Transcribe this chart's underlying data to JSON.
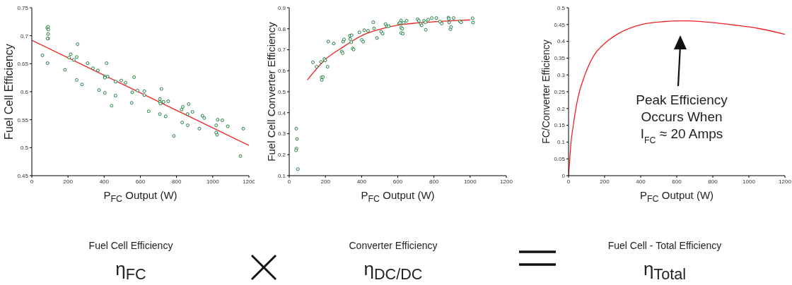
{
  "chart_data": [
    {
      "type": "scatter",
      "xlabel": "P$_{FC}$ Output (W)",
      "ylabel": "Fuel Cell Efficiency",
      "xlim": [
        0,
        1200
      ],
      "xticks": [
        0,
        200,
        400,
        600,
        800,
        1000,
        1200
      ],
      "ylim": [
        0.45,
        0.75
      ],
      "yticks": [
        0.45,
        0.5,
        0.55,
        0.6,
        0.65,
        0.7,
        0.75
      ],
      "annotations": [
        "Fuel Cell Efficiency",
        "η$_{FC}$"
      ],
      "series": [
        {
          "marker": "circle",
          "color": "#208040",
          "x": [
            59,
            85,
            90,
            91,
            90,
            90,
            87,
            87,
            183,
            206,
            215,
            232,
            248,
            253,
            248,
            277,
            308,
            338,
            365,
            372,
            404,
            404,
            404,
            413,
            419,
            441,
            463,
            463,
            494,
            518,
            555,
            552,
            565,
            584,
            622,
            622,
            646,
            708,
            708,
            711,
            708,
            717,
            728,
            740,
            754,
            785,
            828,
            835,
            831,
            861,
            862,
            867,
            888,
            926,
            943,
            953,
            1019,
            1019,
            1024,
            1027,
            1053,
            1083,
            1153,
            1169
          ],
          "values": [
            0.665,
            0.714,
            0.716,
            0.711,
            0.703,
            0.695,
            0.695,
            0.651,
            0.639,
            0.661,
            0.667,
            0.657,
            0.662,
            0.685,
            0.621,
            0.613,
            0.651,
            0.642,
            0.638,
            0.603,
            0.627,
            0.625,
            0.598,
            0.651,
            0.627,
            0.575,
            0.618,
            0.593,
            0.62,
            0.616,
            0.599,
            0.58,
            0.626,
            0.602,
            0.601,
            0.594,
            0.565,
            0.587,
            0.582,
            0.579,
            0.56,
            0.605,
            0.582,
            0.556,
            0.583,
            0.521,
            0.568,
            0.573,
            0.545,
            0.56,
            0.54,
            0.578,
            0.564,
            0.534,
            0.557,
            0.553,
            0.54,
            0.527,
            0.523,
            0.55,
            0.549,
            0.538,
            0.485,
            0.534
          ]
        },
        {
          "type": "line",
          "color": "#f02020",
          "x": [
            0,
            1200
          ],
          "values": [
            0.692,
            0.504
          ]
        }
      ]
    },
    {
      "type": "scatter",
      "xlabel": "P$_{FC}$ Output (W)",
      "ylabel": "Fuel Cell Converter Efficiency",
      "xlim": [
        0,
        1200
      ],
      "xticks": [
        0,
        200,
        400,
        600,
        800,
        1000,
        1200
      ],
      "ylim": [
        0.1,
        0.9
      ],
      "yticks": [
        0.1,
        0.2,
        0.3,
        0.4,
        0.5,
        0.6,
        0.7,
        0.8,
        0.9
      ],
      "annotations": [
        "Converter Efficiency",
        "η$_{DC/DC}$"
      ],
      "series": [
        {
          "marker": "circle",
          "color": "#208040",
          "x": [
            39,
            43,
            40,
            38,
            48,
            131,
            151,
            176,
            179,
            180,
            187,
            194,
            199,
            212,
            216,
            246,
            290,
            295,
            298,
            303,
            335,
            337,
            345,
            343,
            351,
            356,
            388,
            401,
            409,
            415,
            436,
            464,
            469,
            485,
            508,
            516,
            532,
            540,
            550,
            607,
            612,
            618,
            619,
            625,
            619,
            628,
            633,
            649,
            710,
            716,
            727,
            732,
            745,
            753,
            755,
            768,
            788,
            813,
            833,
            843,
            880,
            882,
            884,
            891,
            895,
            909,
            943,
            950,
            1014,
            1016
          ],
          "values": [
            0.324,
            0.275,
            0.229,
            0.221,
            0.131,
            0.64,
            0.619,
            0.642,
            0.568,
            0.556,
            0.57,
            0.656,
            0.649,
            0.619,
            0.739,
            0.73,
            0.692,
            0.684,
            0.739,
            0.749,
            0.767,
            0.751,
            0.769,
            0.736,
            0.706,
            0.701,
            0.783,
            0.747,
            0.738,
            0.793,
            0.79,
            0.831,
            0.802,
            0.756,
            0.786,
            0.777,
            0.822,
            0.812,
            0.812,
            0.825,
            0.828,
            0.84,
            0.805,
            0.8,
            0.78,
            0.777,
            0.828,
            0.838,
            0.845,
            0.838,
            0.823,
            0.816,
            0.838,
            0.831,
            0.795,
            0.843,
            0.851,
            0.851,
            0.834,
            0.825,
            0.853,
            0.847,
            0.83,
            0.798,
            0.808,
            0.851,
            0.836,
            0.831,
            0.85,
            0.83
          ]
        },
        {
          "type": "line",
          "color": "#f02020",
          "x": [
            100,
            200,
            300,
            400,
            500,
            600,
            700,
            800,
            900,
            1000
          ],
          "values": [
            0.556,
            0.654,
            0.714,
            0.767,
            0.797,
            0.817,
            0.827,
            0.833,
            0.838,
            0.842
          ]
        }
      ]
    },
    {
      "type": "line",
      "xlabel": "P$_{FC}$ Output (W)",
      "ylabel": "FC/Converter Efficiency",
      "xlim": [
        0,
        1200
      ],
      "xticks": [
        0,
        200,
        400,
        600,
        800,
        1000,
        1200
      ],
      "ylim": [
        0,
        0.5
      ],
      "yticks": [
        0,
        0.05,
        0.1,
        0.15,
        0.2,
        0.25,
        0.3,
        0.35,
        0.4,
        0.45,
        0.5
      ],
      "annotations": [
        "Fuel Cell - Total Efficiency",
        "η$_{Total}$",
        "Peak Efficiency\nOccurs When\nI$_{FC}$ ≈ 20 Amps"
      ],
      "series": [
        {
          "color": "#f02020",
          "x": [
            0,
            5,
            12,
            25,
            51,
            90,
            142,
            201,
            273,
            403,
            534,
            599,
            665,
            795,
            926,
            1056,
            1200
          ],
          "values": [
            0,
            0.033,
            0.089,
            0.145,
            0.229,
            0.299,
            0.359,
            0.394,
            0.422,
            0.45,
            0.459,
            0.461,
            0.461,
            0.456,
            0.448,
            0.438,
            0.421
          ]
        }
      ]
    }
  ]
}
